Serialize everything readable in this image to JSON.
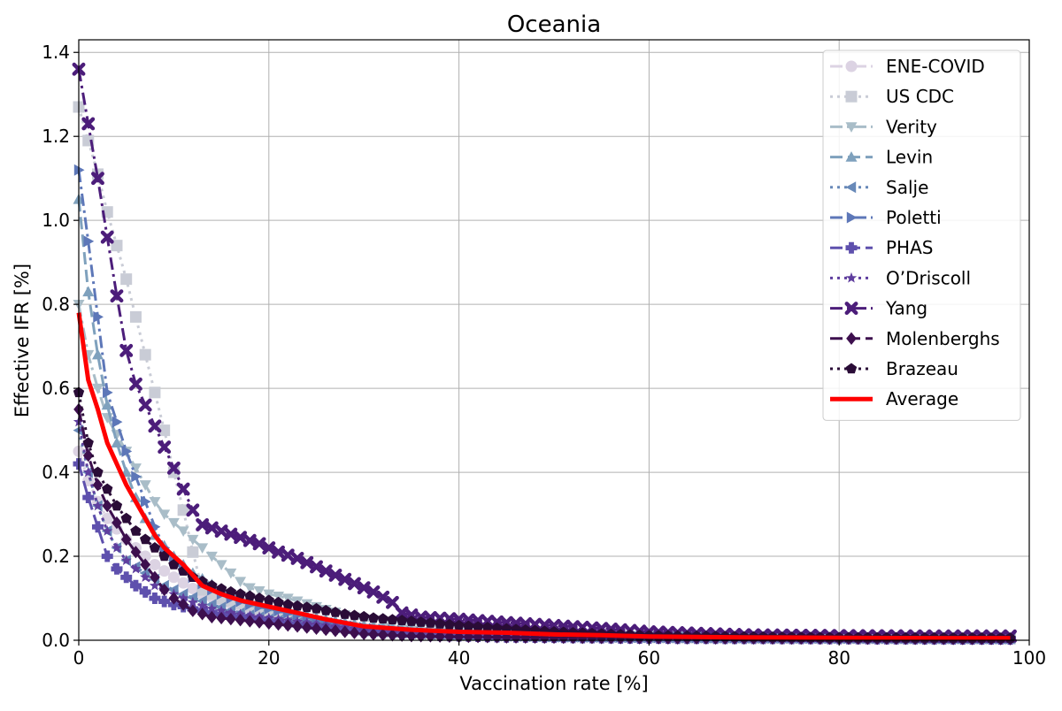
{
  "chart_data": {
    "type": "line",
    "title": "Oceania",
    "xlabel": "Vaccination rate [%]",
    "ylabel": "Effective IFR [%]",
    "xlim": [
      0,
      100
    ],
    "ylim": [
      0,
      1.43
    ],
    "xticks": [
      0,
      20,
      40,
      60,
      80,
      100
    ],
    "xtick_labels": [
      "0",
      "20",
      "40",
      "60",
      "80",
      "100"
    ],
    "yticks": [
      0,
      0.2,
      0.4,
      0.6,
      0.8,
      1.0,
      1.2,
      1.4
    ],
    "ytick_labels": [
      "0.0",
      "0.2",
      "0.4",
      "0.6",
      "0.8",
      "1.0",
      "1.2",
      "1.4"
    ],
    "grid": true,
    "legend_position": "top-right",
    "series": [
      {
        "name": "ENE-COVID",
        "color": "#dcd3e3",
        "marker": "circle",
        "dash": "dashdot",
        "width": 3,
        "points": [
          [
            0,
            0.45
          ],
          [
            1,
            0.38
          ],
          [
            2,
            0.33
          ],
          [
            3,
            0.29
          ],
          [
            5,
            0.24
          ],
          [
            8,
            0.18
          ],
          [
            10,
            0.15
          ],
          [
            13,
            0.11
          ],
          [
            17,
            0.08
          ],
          [
            22,
            0.055
          ],
          [
            28,
            0.035
          ],
          [
            35,
            0.02
          ],
          [
            45,
            0.012
          ],
          [
            60,
            0.007
          ],
          [
            80,
            0.005
          ],
          [
            98,
            0.004
          ]
        ]
      },
      {
        "name": "US CDC",
        "color": "#c9ccd6",
        "marker": "square",
        "dash": "dotted",
        "width": 3,
        "points": [
          [
            0,
            1.27
          ],
          [
            1,
            1.19
          ],
          [
            2,
            1.11
          ],
          [
            3,
            1.02
          ],
          [
            4,
            0.94
          ],
          [
            5,
            0.86
          ],
          [
            6,
            0.77
          ],
          [
            7,
            0.68
          ],
          [
            8,
            0.59
          ],
          [
            9,
            0.5
          ],
          [
            10,
            0.4
          ],
          [
            11,
            0.31
          ],
          [
            12,
            0.21
          ],
          [
            13,
            0.12
          ],
          [
            15,
            0.1
          ],
          [
            20,
            0.07
          ],
          [
            25,
            0.045
          ],
          [
            30,
            0.025
          ],
          [
            40,
            0.013
          ],
          [
            60,
            0.007
          ],
          [
            80,
            0.005
          ],
          [
            98,
            0.004
          ]
        ]
      },
      {
        "name": "Verity",
        "color": "#a9bdc8",
        "marker": "triangle-down",
        "dash": "dashdot",
        "width": 3,
        "points": [
          [
            0,
            0.8
          ],
          [
            1,
            0.68
          ],
          [
            2,
            0.6
          ],
          [
            3,
            0.53
          ],
          [
            4,
            0.49
          ],
          [
            5,
            0.45
          ],
          [
            6,
            0.41
          ],
          [
            7,
            0.37
          ],
          [
            8,
            0.33
          ],
          [
            9,
            0.3
          ],
          [
            10,
            0.28
          ],
          [
            11,
            0.26
          ],
          [
            12,
            0.24
          ],
          [
            13,
            0.22
          ],
          [
            14,
            0.2
          ],
          [
            15,
            0.18
          ],
          [
            16,
            0.16
          ],
          [
            17,
            0.14
          ],
          [
            18,
            0.125
          ],
          [
            20,
            0.11
          ],
          [
            22,
            0.1
          ],
          [
            25,
            0.08
          ],
          [
            28,
            0.06
          ],
          [
            32,
            0.04
          ],
          [
            38,
            0.025
          ],
          [
            45,
            0.018
          ],
          [
            55,
            0.012
          ],
          [
            65,
            0.01
          ],
          [
            80,
            0.008
          ],
          [
            98,
            0.007
          ]
        ]
      },
      {
        "name": "Levin",
        "color": "#7fa1bd",
        "marker": "triangle-up",
        "dash": "dashed",
        "width": 3,
        "points": [
          [
            0,
            1.05
          ],
          [
            1,
            0.83
          ],
          [
            2,
            0.68
          ],
          [
            3,
            0.56
          ],
          [
            4,
            0.47
          ],
          [
            5,
            0.4
          ],
          [
            6,
            0.34
          ],
          [
            7,
            0.29
          ],
          [
            8,
            0.25
          ],
          [
            10,
            0.2
          ],
          [
            12,
            0.16
          ],
          [
            15,
            0.12
          ],
          [
            18,
            0.09
          ],
          [
            22,
            0.07
          ],
          [
            26,
            0.05
          ],
          [
            30,
            0.035
          ],
          [
            35,
            0.025
          ],
          [
            42,
            0.016
          ],
          [
            50,
            0.011
          ],
          [
            60,
            0.008
          ],
          [
            80,
            0.006
          ],
          [
            98,
            0.005
          ]
        ]
      },
      {
        "name": "Salje",
        "color": "#6889b8",
        "marker": "triangle-left",
        "dash": "dotted",
        "width": 3,
        "points": [
          [
            0,
            0.5
          ],
          [
            1,
            0.4
          ],
          [
            2,
            0.32
          ],
          [
            3,
            0.26
          ],
          [
            4,
            0.22
          ],
          [
            5,
            0.19
          ],
          [
            7,
            0.16
          ],
          [
            9,
            0.13
          ],
          [
            11,
            0.11
          ],
          [
            14,
            0.085
          ],
          [
            17,
            0.065
          ],
          [
            20,
            0.05
          ],
          [
            25,
            0.035
          ],
          [
            30,
            0.022
          ],
          [
            38,
            0.013
          ],
          [
            50,
            0.008
          ],
          [
            70,
            0.006
          ],
          [
            98,
            0.004
          ]
        ]
      },
      {
        "name": "Poletti",
        "color": "#5d77b8",
        "marker": "triangle-right",
        "dash": "dashdot",
        "width": 3,
        "points": [
          [
            0,
            1.12
          ],
          [
            1,
            0.95
          ],
          [
            2,
            0.77
          ],
          [
            3,
            0.59
          ],
          [
            4,
            0.52
          ],
          [
            5,
            0.45
          ],
          [
            6,
            0.39
          ],
          [
            7,
            0.33
          ],
          [
            8,
            0.27
          ],
          [
            9,
            0.22
          ],
          [
            10,
            0.19
          ],
          [
            11,
            0.17
          ],
          [
            12,
            0.15
          ],
          [
            14,
            0.12
          ],
          [
            16,
            0.1
          ],
          [
            18,
            0.085
          ],
          [
            20,
            0.075
          ],
          [
            23,
            0.06
          ],
          [
            26,
            0.045
          ],
          [
            30,
            0.03
          ],
          [
            35,
            0.02
          ],
          [
            42,
            0.013
          ],
          [
            50,
            0.009
          ],
          [
            60,
            0.007
          ],
          [
            80,
            0.005
          ],
          [
            98,
            0.004
          ]
        ]
      },
      {
        "name": "PHAS",
        "color": "#5e50ad",
        "marker": "plus",
        "dash": "dashed",
        "width": 3,
        "points": [
          [
            0,
            0.42
          ],
          [
            1,
            0.34
          ],
          [
            2,
            0.27
          ],
          [
            3,
            0.2
          ],
          [
            4,
            0.17
          ],
          [
            5,
            0.15
          ],
          [
            6,
            0.13
          ],
          [
            7,
            0.115
          ],
          [
            8,
            0.1
          ],
          [
            10,
            0.085
          ],
          [
            12,
            0.075
          ],
          [
            15,
            0.062
          ],
          [
            18,
            0.052
          ],
          [
            21,
            0.042
          ],
          [
            25,
            0.032
          ],
          [
            30,
            0.02
          ],
          [
            35,
            0.013
          ],
          [
            45,
            0.008
          ],
          [
            60,
            0.005
          ],
          [
            80,
            0.004
          ],
          [
            98,
            0.003
          ]
        ]
      },
      {
        "name": "O’Driscoll",
        "color": "#5f3e9e",
        "marker": "star",
        "dash": "dotted",
        "width": 3,
        "points": [
          [
            0,
            0.52
          ],
          [
            1,
            0.4
          ],
          [
            2,
            0.32
          ],
          [
            3,
            0.26
          ],
          [
            4,
            0.22
          ],
          [
            5,
            0.19
          ],
          [
            6,
            0.17
          ],
          [
            7,
            0.15
          ],
          [
            8,
            0.13
          ],
          [
            10,
            0.11
          ],
          [
            12,
            0.09
          ],
          [
            14,
            0.075
          ],
          [
            16,
            0.065
          ],
          [
            18,
            0.058
          ],
          [
            21,
            0.05
          ],
          [
            25,
            0.038
          ],
          [
            30,
            0.025
          ],
          [
            35,
            0.017
          ],
          [
            45,
            0.01
          ],
          [
            60,
            0.006
          ],
          [
            80,
            0.005
          ],
          [
            98,
            0.004
          ]
        ]
      },
      {
        "name": "Yang",
        "color": "#4c1d7a",
        "marker": "x",
        "dash": "dashdot",
        "width": 3,
        "points": [
          [
            0,
            1.36
          ],
          [
            1,
            1.23
          ],
          [
            2,
            1.1
          ],
          [
            3,
            0.96
          ],
          [
            4,
            0.82
          ],
          [
            5,
            0.69
          ],
          [
            6,
            0.61
          ],
          [
            7,
            0.56
          ],
          [
            8,
            0.51
          ],
          [
            9,
            0.46
          ],
          [
            10,
            0.41
          ],
          [
            11,
            0.36
          ],
          [
            12,
            0.31
          ],
          [
            13,
            0.275
          ],
          [
            15,
            0.26
          ],
          [
            17,
            0.245
          ],
          [
            19,
            0.23
          ],
          [
            21,
            0.21
          ],
          [
            23,
            0.195
          ],
          [
            25,
            0.175
          ],
          [
            27,
            0.155
          ],
          [
            29,
            0.135
          ],
          [
            31,
            0.115
          ],
          [
            33,
            0.09
          ],
          [
            34,
            0.065
          ],
          [
            36,
            0.055
          ],
          [
            40,
            0.05
          ],
          [
            45,
            0.042
          ],
          [
            50,
            0.035
          ],
          [
            55,
            0.028
          ],
          [
            60,
            0.02
          ],
          [
            70,
            0.013
          ],
          [
            80,
            0.011
          ],
          [
            90,
            0.01
          ],
          [
            98,
            0.01
          ]
        ]
      },
      {
        "name": "Molenberghs",
        "color": "#3d0f4e",
        "marker": "diamond",
        "dash": "dashed",
        "width": 3,
        "points": [
          [
            0,
            0.55
          ],
          [
            1,
            0.44
          ],
          [
            2,
            0.37
          ],
          [
            3,
            0.32
          ],
          [
            4,
            0.28
          ],
          [
            5,
            0.24
          ],
          [
            6,
            0.21
          ],
          [
            7,
            0.18
          ],
          [
            8,
            0.15
          ],
          [
            9,
            0.12
          ],
          [
            10,
            0.1
          ],
          [
            11,
            0.085
          ],
          [
            12,
            0.07
          ],
          [
            14,
            0.055
          ],
          [
            17,
            0.048
          ],
          [
            20,
            0.04
          ],
          [
            23,
            0.033
          ],
          [
            26,
            0.025
          ],
          [
            30,
            0.015
          ],
          [
            35,
            0.01
          ],
          [
            45,
            0.007
          ],
          [
            60,
            0.005
          ],
          [
            80,
            0.004
          ],
          [
            98,
            0.003
          ]
        ]
      },
      {
        "name": "Brazeau",
        "color": "#2a0c37",
        "marker": "pentagon",
        "dash": "dotted",
        "width": 3,
        "points": [
          [
            0,
            0.59
          ],
          [
            1,
            0.47
          ],
          [
            2,
            0.4
          ],
          [
            3,
            0.36
          ],
          [
            4,
            0.32
          ],
          [
            5,
            0.29
          ],
          [
            6,
            0.26
          ],
          [
            7,
            0.24
          ],
          [
            8,
            0.22
          ],
          [
            9,
            0.2
          ],
          [
            10,
            0.18
          ],
          [
            11,
            0.165
          ],
          [
            12,
            0.15
          ],
          [
            14,
            0.13
          ],
          [
            16,
            0.115
          ],
          [
            18,
            0.105
          ],
          [
            20,
            0.095
          ],
          [
            22,
            0.085
          ],
          [
            25,
            0.075
          ],
          [
            28,
            0.062
          ],
          [
            31,
            0.053
          ],
          [
            35,
            0.045
          ],
          [
            40,
            0.035
          ],
          [
            45,
            0.027
          ],
          [
            50,
            0.02
          ],
          [
            55,
            0.015
          ],
          [
            60,
            0.011
          ],
          [
            70,
            0.008
          ],
          [
            80,
            0.006
          ],
          [
            98,
            0.005
          ]
        ]
      },
      {
        "name": "Average",
        "color": "#ff0000",
        "marker": "none",
        "dash": "solid",
        "width": 5,
        "points": [
          [
            0,
            0.78
          ],
          [
            1,
            0.62
          ],
          [
            2,
            0.55
          ],
          [
            3,
            0.47
          ],
          [
            4,
            0.42
          ],
          [
            5,
            0.37
          ],
          [
            6,
            0.33
          ],
          [
            7,
            0.29
          ],
          [
            8,
            0.25
          ],
          [
            9,
            0.22
          ],
          [
            10,
            0.2
          ],
          [
            11,
            0.18
          ],
          [
            12,
            0.155
          ],
          [
            13,
            0.13
          ],
          [
            15,
            0.11
          ],
          [
            17,
            0.095
          ],
          [
            20,
            0.08
          ],
          [
            23,
            0.065
          ],
          [
            26,
            0.05
          ],
          [
            30,
            0.033
          ],
          [
            35,
            0.025
          ],
          [
            40,
            0.02
          ],
          [
            45,
            0.018
          ],
          [
            50,
            0.014
          ],
          [
            55,
            0.012
          ],
          [
            60,
            0.009
          ],
          [
            70,
            0.007
          ],
          [
            80,
            0.006
          ],
          [
            90,
            0.005
          ],
          [
            98,
            0.005
          ]
        ]
      }
    ]
  }
}
